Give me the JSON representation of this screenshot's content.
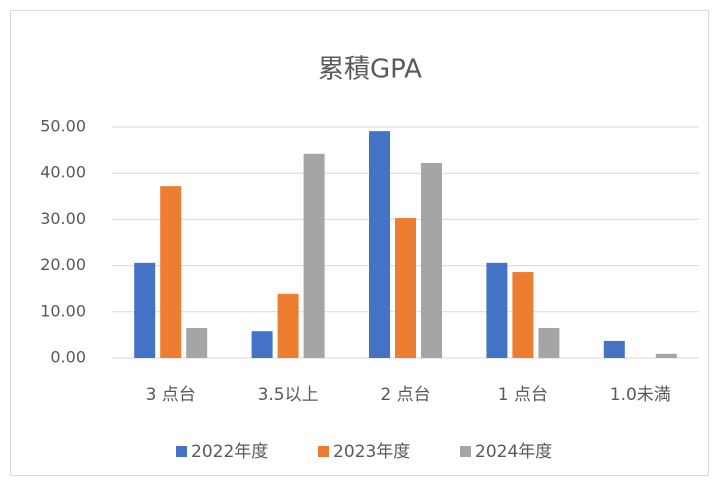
{
  "chart_data": {
    "type": "bar",
    "title": "累積GPA",
    "categories": [
      "3 点台",
      "3.5以上",
      "2 点台",
      "1 点台",
      "1.0未満"
    ],
    "series": [
      {
        "name": "2022年度",
        "color": "#4472c4",
        "values": [
          20.6,
          5.8,
          49.1,
          20.6,
          3.7
        ]
      },
      {
        "name": "2023年度",
        "color": "#ed7d31",
        "values": [
          37.2,
          13.9,
          30.3,
          18.6,
          0
        ]
      },
      {
        "name": "2024年度",
        "color": "#a5a5a5",
        "values": [
          6.5,
          44.2,
          42.2,
          6.5,
          0.9
        ]
      }
    ],
    "ylim": [
      0,
      50
    ],
    "yticks": [
      {
        "value": 0,
        "label": "0.00"
      },
      {
        "value": 10,
        "label": "10.00"
      },
      {
        "value": 20,
        "label": "20.00"
      },
      {
        "value": 30,
        "label": "30.00"
      },
      {
        "value": 40,
        "label": "40.00"
      },
      {
        "value": 50,
        "label": "50.00"
      }
    ],
    "grid": true,
    "legend": "bottom"
  }
}
